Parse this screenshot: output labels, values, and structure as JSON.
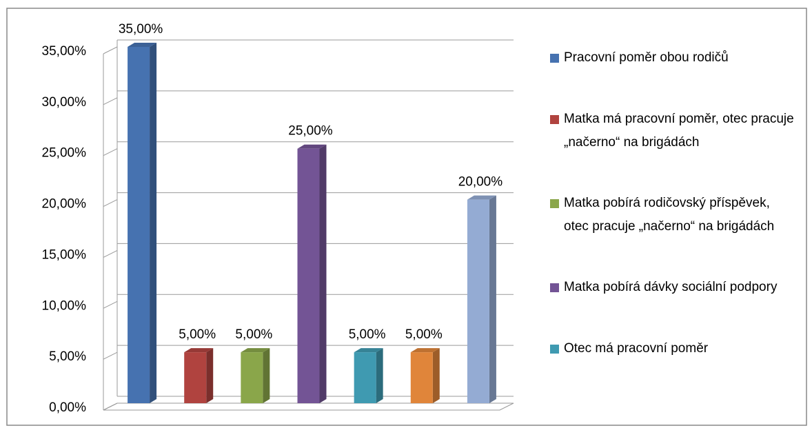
{
  "chart_data": {
    "type": "bar",
    "series": [
      {
        "name": "Pracovní poměr obou rodičů",
        "color": "#4672b0",
        "values": [
          35
        ],
        "value_labels": [
          "35,00%"
        ]
      },
      {
        "name": "Matka má pracovní poměr, otec pracuje „načerno“ na brigádách",
        "color": "#b0433f",
        "values": [
          5
        ],
        "value_labels": [
          "5,00%"
        ]
      },
      {
        "name": "Matka pobírá rodičovský příspěvek, otec pracuje „načerno“ na brigádách",
        "color": "#8aa64a",
        "values": [
          5
        ],
        "value_labels": [
          "5,00%"
        ]
      },
      {
        "name": "Matka pobírá dávky sociální podpory",
        "color": "#735495",
        "values": [
          25
        ],
        "value_labels": [
          "25,00%"
        ]
      },
      {
        "name": "Otec má pracovní poměr",
        "color": "#3f9ab1",
        "values": [
          5
        ],
        "value_labels": [
          "5,00%"
        ]
      },
      {
        "color": "#e0853a",
        "values": [
          5
        ],
        "value_labels": [
          "5,00%"
        ]
      },
      {
        "color": "#94abd3",
        "values": [
          20
        ],
        "value_labels": [
          "20,00%"
        ]
      }
    ],
    "ylim": [
      0,
      35
    ],
    "yticks": [
      {
        "value": 0,
        "label": "0,00%"
      },
      {
        "value": 5,
        "label": "5,00%"
      },
      {
        "value": 10,
        "label": "10,00%"
      },
      {
        "value": 15,
        "label": "15,00%"
      },
      {
        "value": 20,
        "label": "20,00%"
      },
      {
        "value": 25,
        "label": "25,00%"
      },
      {
        "value": 30,
        "label": "30,00%"
      },
      {
        "value": 35,
        "label": "35,00%"
      }
    ],
    "grid": true
  }
}
